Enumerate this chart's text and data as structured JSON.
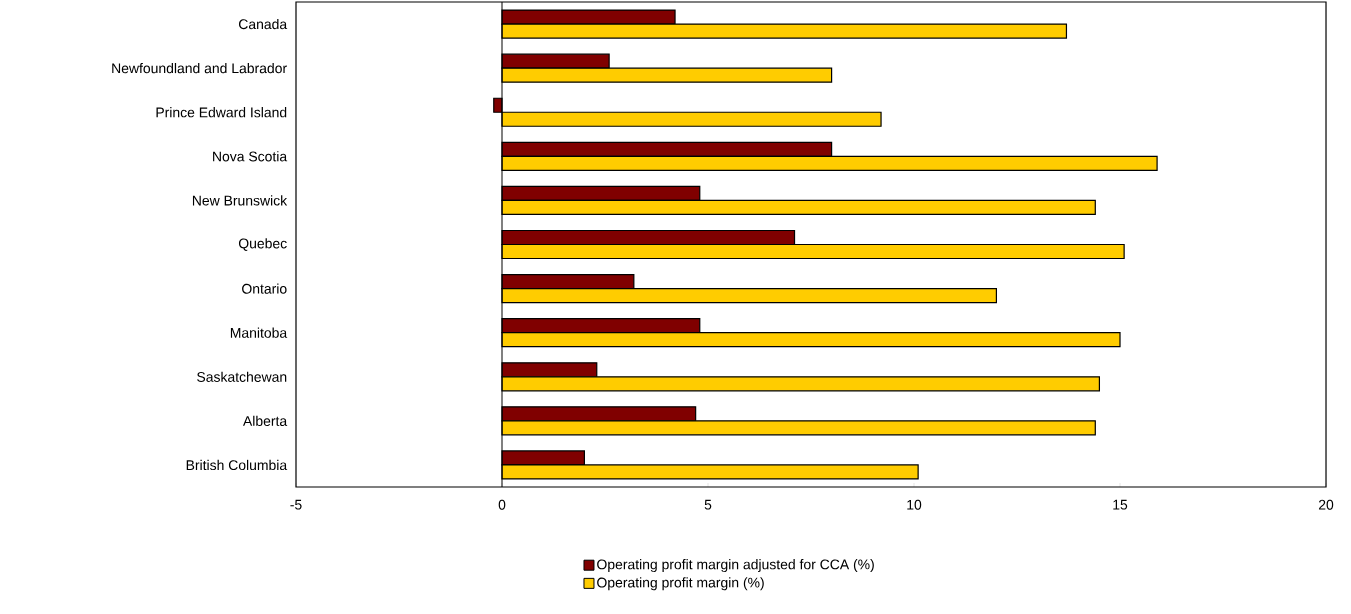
{
  "chart_data": {
    "type": "bar",
    "orientation": "horizontal",
    "categories": [
      "Canada",
      "Newfoundland and Labrador",
      "Prince Edward Island",
      "Nova Scotia",
      "New Brunswick",
      "Quebec",
      "Ontario",
      "Manitoba",
      "Saskatchewan",
      "Alberta",
      "British Columbia"
    ],
    "series": [
      {
        "name": "Operating profit margin adjusted for CCA (%)",
        "color": "#800000",
        "values": [
          4.2,
          2.6,
          -0.2,
          8.0,
          4.8,
          7.1,
          3.2,
          4.8,
          2.3,
          4.7,
          2.0
        ]
      },
      {
        "name": "Operating profit margin (%)",
        "color": "#ffcc00",
        "values": [
          13.7,
          8.0,
          9.2,
          15.9,
          14.4,
          15.1,
          12.0,
          15.0,
          14.5,
          14.4,
          10.1
        ]
      }
    ],
    "ref_lines": [
      {
        "axis": "x",
        "value": 0
      }
    ],
    "xlim": [
      -5,
      20
    ],
    "xticks": [
      -5,
      0,
      5,
      10,
      15,
      20
    ],
    "grid": false,
    "legend": "bottom"
  }
}
